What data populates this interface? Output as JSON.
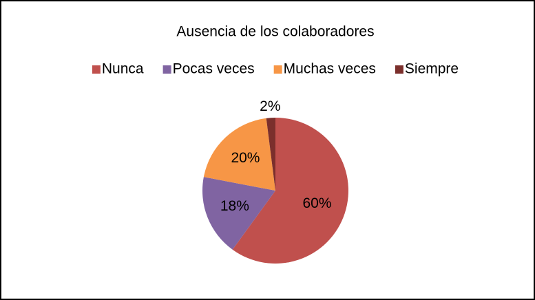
{
  "chart_data": {
    "type": "pie",
    "title": "Ausencia de los colaboradores",
    "categories": [
      "Nunca",
      "Pocas veces",
      "Muchas veces",
      "Siempre"
    ],
    "values": [
      60,
      18,
      20,
      2
    ],
    "value_labels": [
      "60%",
      "18%",
      "20%",
      "2%"
    ],
    "colors": [
      "#c0504d",
      "#8064a2",
      "#f79646",
      "#7b2f2c"
    ],
    "legend": "top"
  }
}
